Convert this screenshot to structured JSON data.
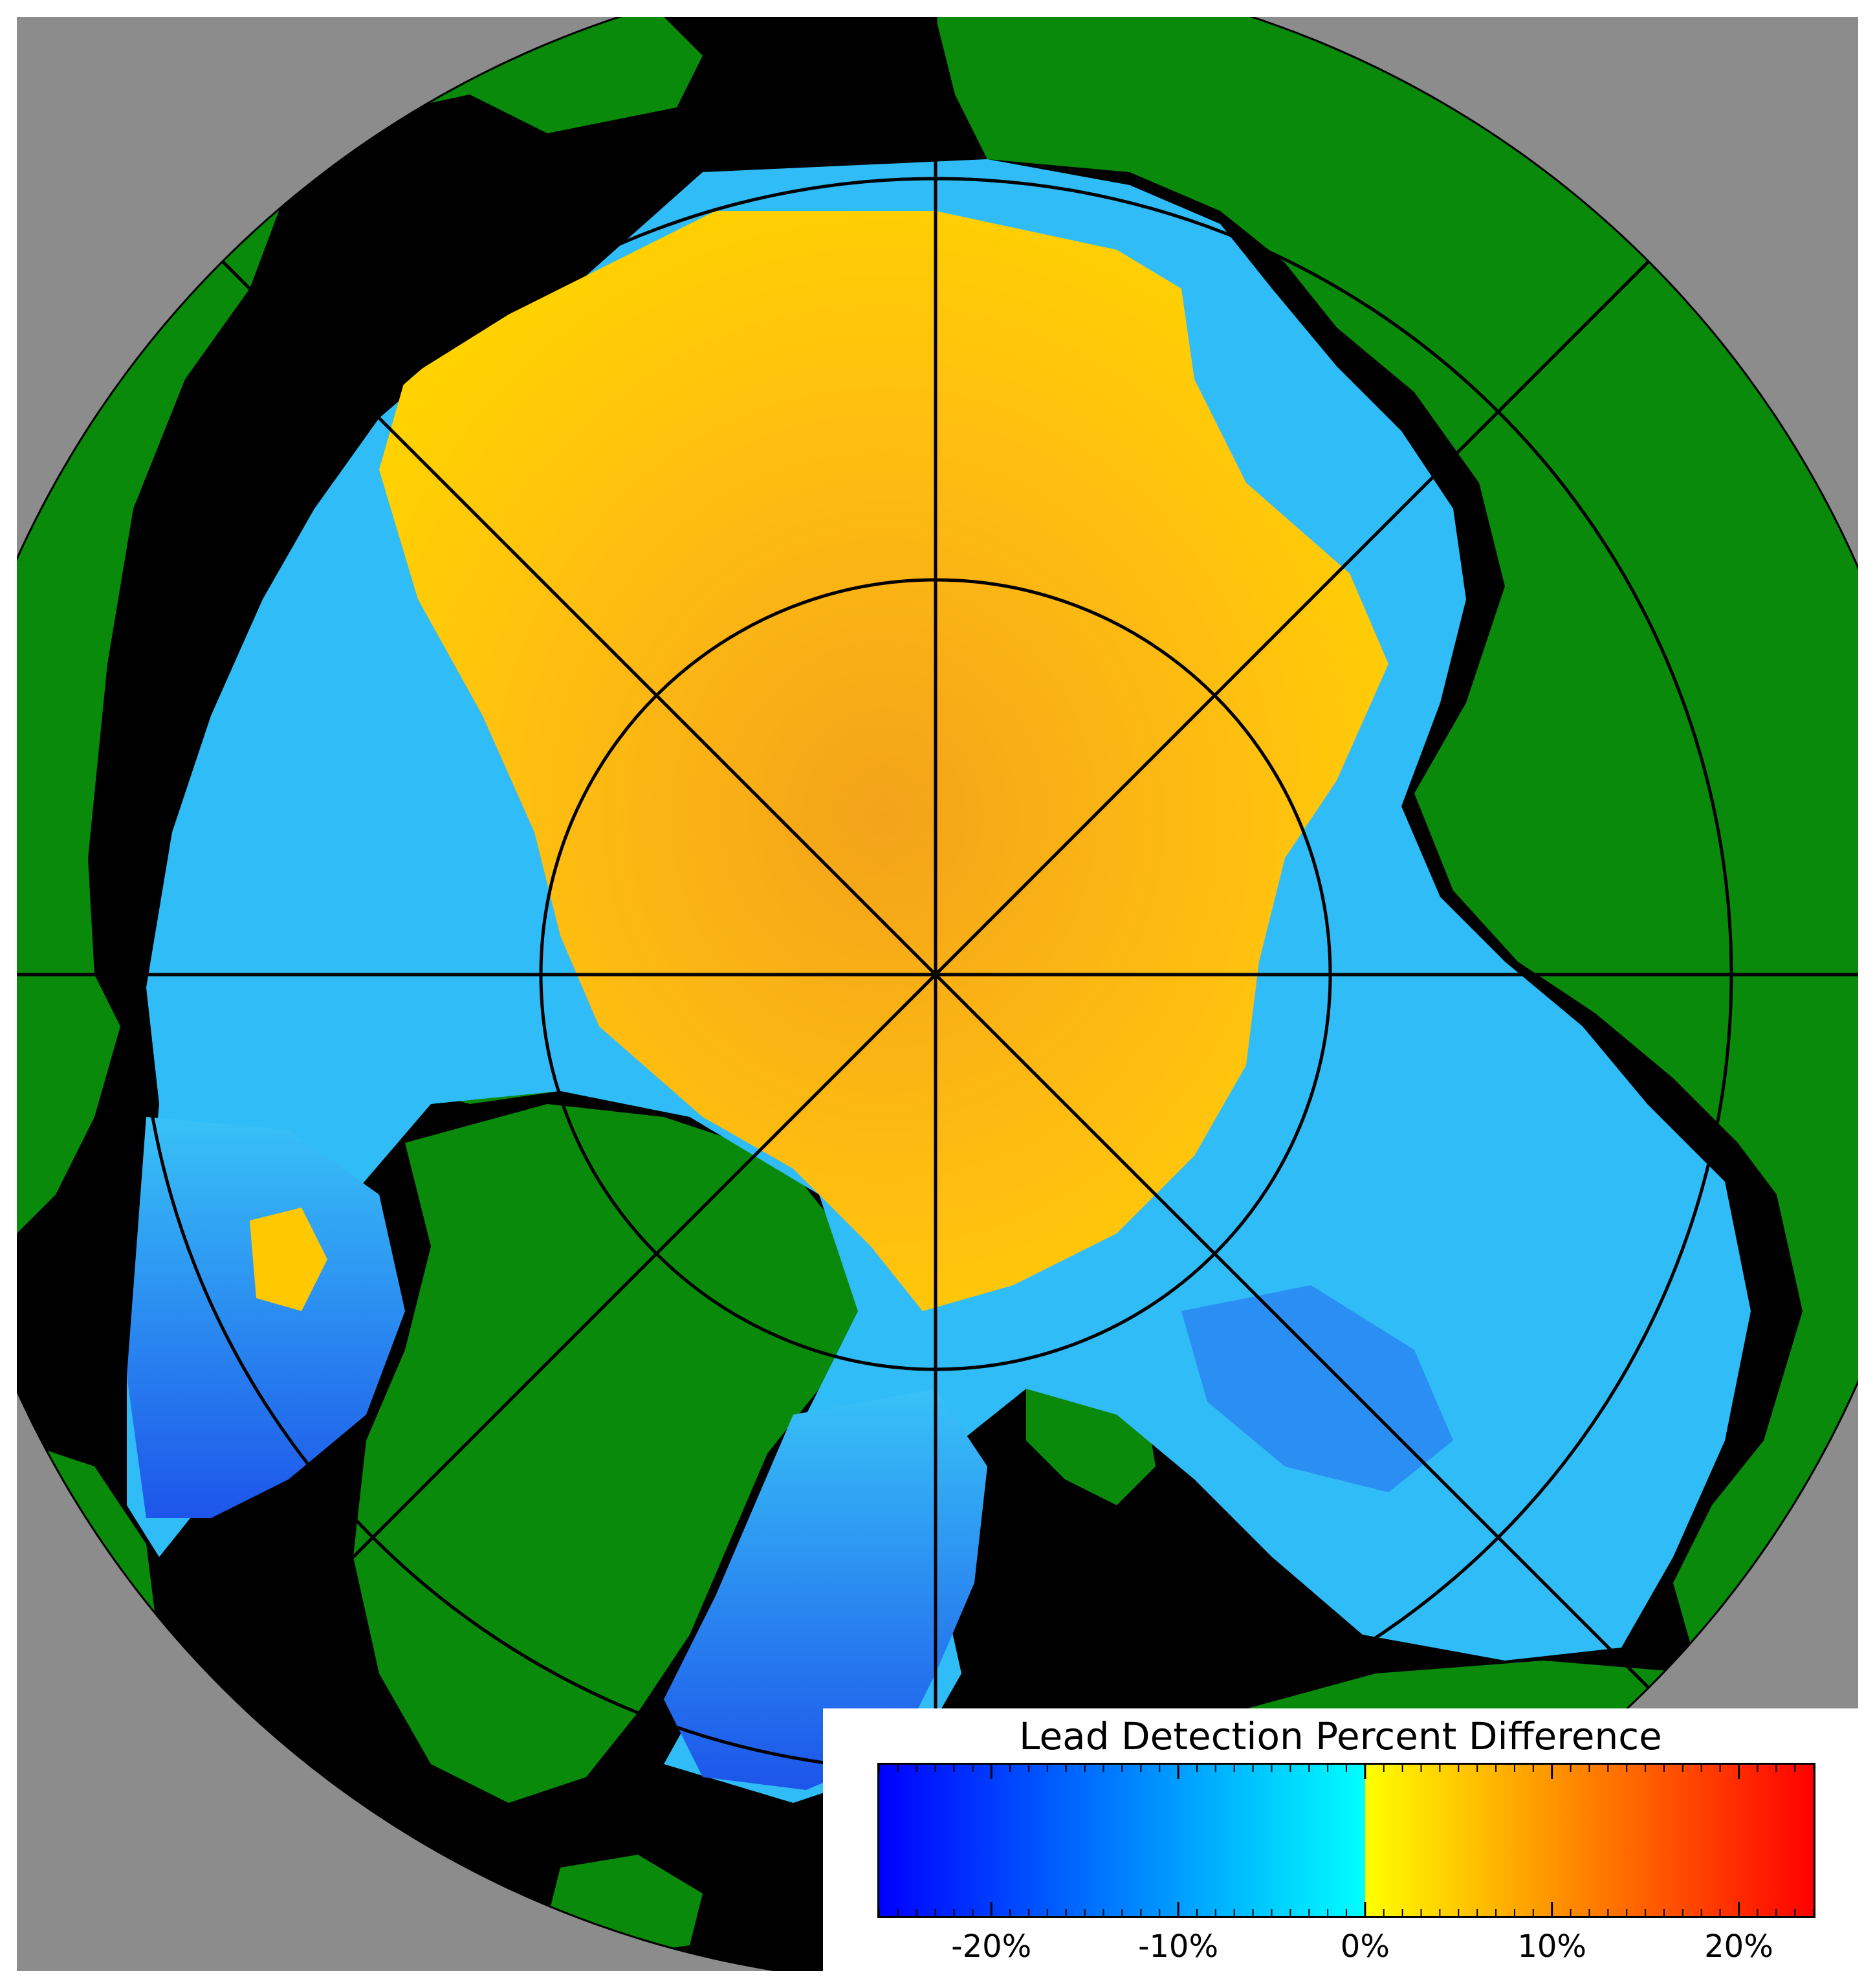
{
  "map": {
    "projection": "north-polar-stereographic",
    "colors": {
      "land": "#0a8a0a",
      "outside_data": "#000000",
      "off_globe": "#8c8c8c",
      "graticule": "#000000",
      "interior_ice": "#ffc400",
      "interior_ice_deep": "#f59a10",
      "marginal_ice": "#2fb8f5",
      "marginal_ice_deep": "#1e5ef0",
      "background": "#ffffff"
    },
    "graticule": {
      "meridians_deg": [
        0,
        45,
        90,
        135,
        180,
        225,
        270,
        315
      ],
      "latitude_circles": 3
    }
  },
  "legend": {
    "title": "Lead Detection Percent Difference",
    "colormap": [
      "#0000ff",
      "#00ffff",
      "#ffff00",
      "#ff0000"
    ],
    "range": [
      -26,
      24
    ],
    "ticks": [
      {
        "value": -20,
        "label": "-20%"
      },
      {
        "value": -10,
        "label": "-10%"
      },
      {
        "value": 0,
        "label": "0%"
      },
      {
        "value": 10,
        "label": "10%"
      },
      {
        "value": 20,
        "label": "20%"
      }
    ]
  }
}
